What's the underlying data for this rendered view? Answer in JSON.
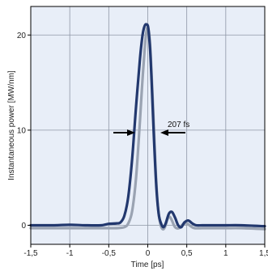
{
  "chart_data": {
    "type": "line",
    "title": "",
    "xlabel": "Time [ps]",
    "ylabel": "Instantaneous power [MW/nm]",
    "xlim": [
      -1.5,
      1.5
    ],
    "ylim": [
      -2,
      23
    ],
    "xticks": [
      -1.5,
      -1,
      -0.5,
      0,
      0.5,
      1,
      1.5
    ],
    "xtick_labels": [
      "-1,5",
      "-1",
      "-0,5",
      "0",
      "0,5",
      "1",
      "1,5"
    ],
    "yticks": [
      0,
      10,
      20
    ],
    "ytick_labels": [
      "0",
      "10",
      "20"
    ],
    "grid": true,
    "legend": "none",
    "background_color": "#e8eef8",
    "series": [
      {
        "color": "#9aa3b2",
        "x": [
          -1.5,
          -1.2,
          -1.0,
          -0.8,
          -0.6,
          -0.5,
          -0.4,
          -0.3,
          -0.25,
          -0.2,
          -0.15,
          -0.1,
          -0.07,
          -0.04,
          -0.02,
          0.0,
          0.02,
          0.04,
          0.07,
          0.1,
          0.13,
          0.16,
          0.19,
          0.22,
          0.25,
          0.28,
          0.31,
          0.35,
          0.4,
          0.45,
          0.5,
          0.55,
          0.6,
          0.7,
          0.8,
          1.0,
          1.2,
          1.5
        ],
        "y": [
          -0.3,
          -0.3,
          -0.3,
          -0.3,
          -0.3,
          -0.3,
          -0.3,
          -0.2,
          0.2,
          1.5,
          5.0,
          11.0,
          15.0,
          18.5,
          20.2,
          20.8,
          20.0,
          17.5,
          12.0,
          6.0,
          2.0,
          0.2,
          -0.4,
          -0.2,
          0.6,
          0.9,
          0.5,
          -0.2,
          -0.3,
          0.1,
          0.2,
          -0.1,
          -0.3,
          -0.3,
          -0.3,
          -0.3,
          -0.3,
          -0.4
        ]
      },
      {
        "color": "#22386e",
        "x": [
          -1.5,
          -1.2,
          -1.0,
          -0.8,
          -0.6,
          -0.5,
          -0.4,
          -0.35,
          -0.3,
          -0.25,
          -0.2,
          -0.15,
          -0.1,
          -0.07,
          -0.05,
          -0.03,
          -0.01,
          0.0,
          0.01,
          0.03,
          0.05,
          0.08,
          0.11,
          0.14,
          0.17,
          0.2,
          0.23,
          0.27,
          0.31,
          0.35,
          0.39,
          0.43,
          0.47,
          0.52,
          0.57,
          0.62,
          0.7,
          0.8,
          0.9,
          1.0,
          1.2,
          1.5
        ],
        "y": [
          0.0,
          0.0,
          0.05,
          0.0,
          0.0,
          0.15,
          0.2,
          0.3,
          1.0,
          3.0,
          7.0,
          12.5,
          17.5,
          19.8,
          20.7,
          21.1,
          21.1,
          21.0,
          20.5,
          18.5,
          15.0,
          9.0,
          4.0,
          1.2,
          0.2,
          -0.2,
          0.2,
          1.2,
          1.4,
          0.8,
          0.0,
          -0.2,
          0.3,
          0.5,
          0.2,
          0.0,
          0.0,
          0.0,
          0.0,
          0.0,
          0.0,
          -0.1
        ]
      }
    ],
    "annotations": [
      {
        "text": "207 fs"
      }
    ]
  }
}
